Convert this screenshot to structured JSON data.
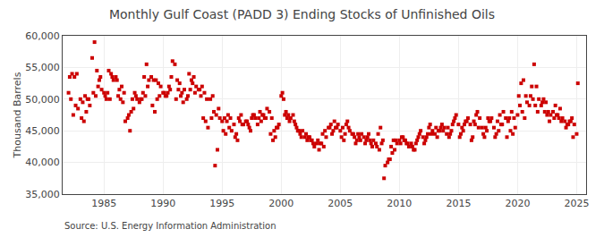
{
  "chart_data": {
    "type": "scatter",
    "title": "Monthly Gulf Coast (PADD 3) Ending Stocks of Unfinished Oils",
    "ylabel": "Thousand Barrels",
    "annotations": [
      "Source: U.S. Energy Information Administration"
    ],
    "color": "#cc0000",
    "marker": "square",
    "grid": true,
    "xlim": [
      1981.5,
      2025.8
    ],
    "xticks": [
      1985,
      1990,
      1995,
      2000,
      2005,
      2010,
      2015,
      2020,
      2025
    ],
    "ylim": [
      35000,
      60000
    ],
    "yticks": [
      {
        "value": 35000,
        "label": "35,000"
      },
      {
        "value": 40000,
        "label": "40,000"
      },
      {
        "value": 45000,
        "label": "45,000"
      },
      {
        "value": 50000,
        "label": "50,000"
      },
      {
        "value": 55000,
        "label": "55,000"
      },
      {
        "value": 60000,
        "label": "60,000"
      }
    ],
    "x": [
      1982.0,
      1982.2,
      1982.4,
      1982.6,
      1982.8,
      1983.0,
      1983.2,
      1983.4,
      1983.6,
      1983.8,
      1984.0,
      1984.2,
      1984.4,
      1984.6,
      1984.8,
      1985.0,
      1985.2,
      1985.4,
      1985.6,
      1985.8,
      1986.0,
      1986.2,
      1986.4,
      1986.6,
      1986.8,
      1987.0,
      1987.2,
      1987.4,
      1987.6,
      1987.8,
      1988.0,
      1988.2,
      1988.4,
      1988.6,
      1988.8,
      1989.0,
      1989.2,
      1989.4,
      1989.6,
      1989.8,
      1990.0,
      1990.2,
      1990.4,
      1990.6,
      1990.8,
      1991.0,
      1991.2,
      1991.4,
      1991.6,
      1991.8,
      1992.0,
      1992.2,
      1992.4,
      1992.6,
      1992.8,
      1993.0,
      1993.2,
      1993.4,
      1993.6,
      1993.8,
      1994.0,
      1994.2,
      1994.4,
      1994.6,
      1994.8,
      1995.0,
      1995.2,
      1995.4,
      1995.6,
      1995.8,
      1996.0,
      1996.2,
      1996.4,
      1996.6,
      1996.8,
      1997.0,
      1997.2,
      1997.4,
      1997.6,
      1997.8,
      1998.0,
      1998.2,
      1998.4,
      1998.6,
      1998.8,
      1999.0,
      1999.2,
      1999.4,
      1999.6,
      1999.8,
      2000.0,
      2000.2,
      2000.4,
      2000.6,
      2000.8,
      2001.0,
      2001.2,
      2001.4,
      2001.6,
      2001.8,
      2002.0,
      2002.2,
      2002.4,
      2002.6,
      2002.8,
      2003.0,
      2003.2,
      2003.4,
      2003.6,
      2003.8,
      2004.0,
      2004.2,
      2004.4,
      2004.6,
      2004.8,
      2005.0,
      2005.2,
      2005.4,
      2005.6,
      2005.8,
      2006.0,
      2006.2,
      2006.4,
      2006.6,
      2006.8,
      2007.0,
      2007.2,
      2007.4,
      2007.6,
      2007.8,
      2008.0,
      2008.2,
      2008.4,
      2008.6,
      2008.8,
      2009.0,
      2009.2,
      2009.4,
      2009.6,
      2009.8,
      2010.0,
      2010.2,
      2010.4,
      2010.6,
      2010.8,
      2011.0,
      2011.2,
      2011.4,
      2011.6,
      2011.8,
      2012.0,
      2012.2,
      2012.4,
      2012.6,
      2012.8,
      2013.0,
      2013.2,
      2013.4,
      2013.6,
      2013.8,
      2014.0,
      2014.2,
      2014.4,
      2014.6,
      2014.8,
      2015.0,
      2015.2,
      2015.4,
      2015.6,
      2015.8,
      2016.0,
      2016.2,
      2016.4,
      2016.6,
      2016.8,
      2017.0,
      2017.2,
      2017.4,
      2017.6,
      2017.8,
      2018.0,
      2018.2,
      2018.4,
      2018.6,
      2018.8,
      2019.0,
      2019.2,
      2019.4,
      2019.6,
      2019.8,
      2020.0,
      2020.2,
      2020.4,
      2020.6,
      2020.8,
      2021.0,
      2021.2,
      2021.4,
      2021.6,
      2021.8,
      2022.0,
      2022.2,
      2022.4,
      2022.6,
      2022.8,
      2023.0,
      2023.2,
      2023.4,
      2023.6,
      2023.8,
      2024.0,
      2024.2,
      2024.4,
      2024.6,
      2024.8,
      2025.0,
      2025.1,
      1982.1,
      1982.3,
      1982.5,
      1982.7,
      1983.1,
      1983.3,
      1983.5,
      1983.7,
      1984.1,
      1984.3,
      1984.5,
      1984.7,
      1985.1,
      1985.3,
      1985.5,
      1985.7,
      1986.1,
      1986.3,
      1986.5,
      1986.7,
      1987.1,
      1987.3,
      1987.5,
      1987.7,
      1988.1,
      1988.3,
      1988.5,
      1988.7,
      1989.1,
      1989.3,
      1989.5,
      1989.7,
      1990.1,
      1990.3,
      1990.5,
      1990.7,
      1991.1,
      1991.3,
      1991.5,
      1991.7,
      1992.1,
      1992.3,
      1992.5,
      1992.7,
      1993.1,
      1993.3,
      1993.5,
      1993.7,
      1994.1,
      1994.3,
      1994.5,
      1994.7,
      1995.1,
      1995.3,
      1995.5,
      1995.7,
      1996.1,
      1996.3,
      1996.5,
      1996.7,
      1997.1,
      1997.3,
      1997.5,
      1997.7,
      1998.1,
      1998.3,
      1998.5,
      1998.7,
      1999.1,
      1999.3,
      1999.5,
      1999.7,
      2000.1,
      2000.3,
      2000.5,
      2000.7,
      2001.1,
      2001.3,
      2001.5,
      2001.7,
      2002.1,
      2002.3,
      2002.5,
      2002.7,
      2003.1,
      2003.3,
      2003.5,
      2003.7,
      2004.1,
      2004.3,
      2004.5,
      2004.7,
      2005.1,
      2005.3,
      2005.5,
      2005.7,
      2006.1,
      2006.3,
      2006.5,
      2006.7,
      2007.1,
      2007.3,
      2007.5,
      2007.7,
      2008.1,
      2008.3,
      2008.5,
      2008.7,
      2009.1,
      2009.3,
      2009.5,
      2009.7,
      2010.1,
      2010.3,
      2010.5,
      2010.7,
      2011.1,
      2011.3,
      2011.5,
      2011.7,
      2012.1,
      2012.3,
      2012.5,
      2012.7,
      2013.1,
      2013.3,
      2013.5,
      2013.7,
      2014.1,
      2014.3,
      2014.5,
      2014.7,
      2015.1,
      2015.3,
      2015.5,
      2015.7,
      2016.1,
      2016.3,
      2016.5,
      2016.7,
      2017.1,
      2017.3,
      2017.5,
      2017.7,
      2018.1,
      2018.3,
      2018.5,
      2018.7,
      2019.1,
      2019.3,
      2019.5,
      2019.7,
      2020.1,
      2020.3,
      2020.5,
      2020.7,
      2021.1,
      2021.3,
      2021.5,
      2021.7,
      2022.1,
      2022.3,
      2022.5,
      2022.7,
      2023.1,
      2023.3,
      2023.5,
      2023.7,
      2024.1,
      2024.3,
      2024.5,
      2024.7
    ],
    "values": [
      51000,
      50000,
      47500,
      49000,
      48500,
      50000,
      49500,
      50500,
      50000,
      49000,
      56500,
      59000,
      54500,
      53000,
      51500,
      51000,
      50000,
      54500,
      54000,
      53000,
      53500,
      50500,
      50000,
      49500,
      46500,
      47000,
      45000,
      50000,
      51000,
      50000,
      49500,
      50000,
      53500,
      55500,
      53000,
      53500,
      53000,
      53000,
      52500,
      52000,
      51000,
      50500,
      51000,
      51500,
      56000,
      55500,
      53000,
      52500,
      51000,
      51500,
      50000,
      54000,
      53000,
      53500,
      52000,
      51500,
      50500,
      47000,
      46500,
      45500,
      50000,
      50500,
      39500,
      42000,
      47000,
      46500,
      47000,
      46500,
      45500,
      45000,
      46000,
      44500,
      47000,
      47500,
      46000,
      46500,
      46000,
      45000,
      47500,
      47000,
      46000,
      48000,
      47500,
      47000,
      48500,
      48000,
      47000,
      45000,
      45500,
      46000,
      50500,
      50000,
      48000,
      47500,
      47000,
      47500,
      46000,
      45000,
      44500,
      45000,
      44000,
      43500,
      44000,
      43500,
      42500,
      43000,
      42000,
      43000,
      42500,
      44000,
      45500,
      46000,
      45000,
      45500,
      46000,
      45000,
      45500,
      44500,
      46500,
      45000,
      44500,
      44000,
      43500,
      44000,
      44500,
      44000,
      43500,
      44500,
      43000,
      43500,
      43000,
      44500,
      45500,
      43500,
      39500,
      40000,
      40500,
      41500,
      42000,
      43000,
      43500,
      44000,
      43500,
      43000,
      42500,
      43000,
      42000,
      43000,
      44000,
      45000,
      44000,
      43500,
      44500,
      46000,
      45000,
      44500,
      44000,
      45000,
      46000,
      45500,
      44500,
      44000,
      45000,
      46500,
      47500,
      46000,
      44500,
      45000,
      46500,
      47000,
      46000,
      44000,
      46000,
      48000,
      47000,
      45500,
      44000,
      45000,
      46500,
      47000,
      45500,
      44500,
      45000,
      46000,
      48000,
      47000,
      46500,
      45000,
      44500,
      45500,
      47500,
      49000,
      48000,
      47000,
      49500,
      49000,
      52000,
      55500,
      52000,
      50000,
      49000,
      50000,
      49500,
      48000,
      47500,
      48000,
      49000,
      47500,
      48500,
      47000,
      46500,
      46000,
      46500,
      47000,
      46000,
      44500,
      52500,
      53500,
      54000,
      53500,
      54000,
      47000,
      46500,
      48000,
      50000,
      51000,
      50500,
      52000,
      53500,
      50500,
      51000,
      50000,
      53500,
      53000,
      51500,
      52000,
      51000,
      47500,
      48000,
      48500,
      50500,
      50000,
      51000,
      50500,
      52000,
      49000,
      48000,
      50000,
      50500,
      51000,
      50500,
      52000,
      53500,
      50000,
      51500,
      50500,
      49500,
      50500,
      51500,
      52500,
      51000,
      51500,
      52000,
      51000,
      50000,
      47000,
      48000,
      47500,
      48500,
      45000,
      44500,
      47500,
      47000,
      44000,
      43500,
      46500,
      46000,
      46500,
      45500,
      47000,
      47500,
      47000,
      46500,
      47500,
      47000,
      44500,
      43500,
      44000,
      45500,
      51000,
      47500,
      47000,
      46500,
      46500,
      45500,
      45000,
      44000,
      44500,
      44000,
      43500,
      43000,
      43500,
      43000,
      44500,
      45000,
      45500,
      44500,
      46500,
      45500,
      44000,
      43500,
      46000,
      45500,
      44500,
      43000,
      44500,
      43500,
      43000,
      44000,
      43500,
      42500,
      42500,
      42000,
      43000,
      37500,
      40500,
      42500,
      43500,
      43500,
      43000,
      44000,
      43500,
      43000,
      42500,
      42000,
      43500,
      44500,
      43000,
      44000,
      45500,
      44500,
      45500,
      45000,
      45500,
      45000,
      45500,
      44500,
      46000,
      47000,
      44000,
      45500,
      46000,
      46500,
      43500,
      46500,
      47500,
      45500,
      44500,
      45500,
      47000,
      46500,
      44000,
      46500,
      47500,
      46000,
      44000,
      47000,
      48000,
      47000,
      50500,
      52500,
      53000,
      50500,
      50500,
      50000,
      49000,
      48000,
      49500,
      48000,
      47500,
      46500,
      47000,
      47500,
      47000,
      46500,
      45500,
      46000,
      46500,
      44000
    ]
  }
}
